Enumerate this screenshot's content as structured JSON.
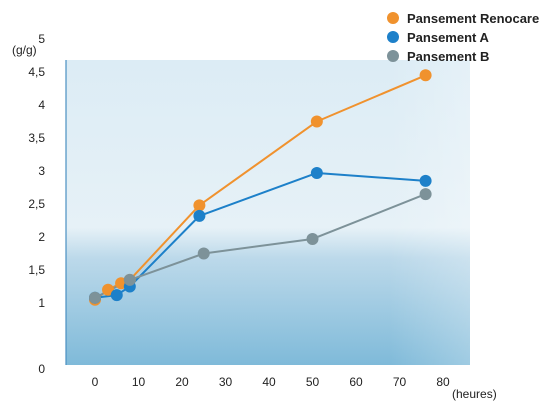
{
  "chart_data": {
    "type": "line",
    "title": "",
    "ylabel": "(g/g)",
    "xlabel": "(heures)",
    "xlim": [
      -8,
      80
    ],
    "ylim": [
      0,
      5
    ],
    "xticks": [
      0,
      10,
      20,
      30,
      40,
      50,
      60,
      70,
      80
    ],
    "yticks": [
      0,
      0.5,
      1,
      1.5,
      2,
      2.5,
      3,
      3.5,
      4,
      4.5,
      5
    ],
    "ytick_labels": [
      "0",
      "",
      "1",
      "1,5",
      "2",
      "2,5",
      "3",
      "3,5",
      "4",
      "4,5",
      "5"
    ],
    "legend_position": "top-right",
    "series": [
      {
        "name": "Pansement Renocare",
        "color": "#f0922e",
        "x": [
          0,
          3,
          6,
          8,
          24,
          51,
          76
        ],
        "y": [
          1.05,
          1.2,
          1.3,
          1.35,
          2.48,
          3.75,
          4.45
        ]
      },
      {
        "name": "Pansement A",
        "color": "#1d80c9",
        "x": [
          0,
          5,
          8,
          24,
          51,
          76
        ],
        "y": [
          1.08,
          1.12,
          1.25,
          2.32,
          2.97,
          2.85
        ]
      },
      {
        "name": "Pansement B",
        "color": "#7d9299",
        "x": [
          0,
          8,
          25,
          50,
          76
        ],
        "y": [
          1.08,
          1.35,
          1.75,
          1.97,
          2.65
        ]
      }
    ]
  }
}
